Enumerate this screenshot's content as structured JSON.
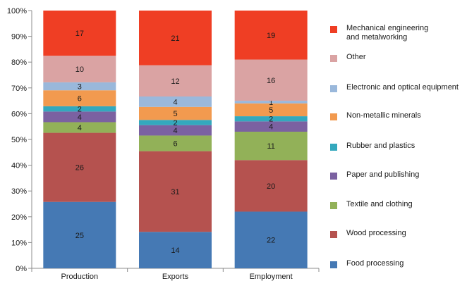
{
  "chart_data": {
    "type": "bar",
    "stacked": true,
    "categories": [
      "Production",
      "Exports",
      "Employment"
    ],
    "ylim": [
      0,
      100
    ],
    "y_ticks": [
      "0%",
      "10%",
      "20%",
      "30%",
      "40%",
      "50%",
      "60%",
      "70%",
      "80%",
      "90%",
      "100%"
    ],
    "grid": false,
    "legend_placement": "right",
    "series": [
      {
        "name": "Food processing",
        "color": "#4579b4",
        "values": [
          25,
          14,
          22
        ]
      },
      {
        "name": "Wood processing",
        "color": "#b5524f",
        "values": [
          26,
          31,
          20
        ]
      },
      {
        "name": "Textile and clothing",
        "color": "#92b158",
        "values": [
          4,
          6,
          11
        ]
      },
      {
        "name": "Paper and publishing",
        "color": "#7b61a1",
        "values": [
          4,
          4,
          4
        ]
      },
      {
        "name": "Rubber and plastics",
        "color": "#34a8bd",
        "values": [
          2,
          2,
          2
        ]
      },
      {
        "name": "Non-metallic minerals",
        "color": "#f29a4f",
        "values": [
          6,
          5,
          5
        ]
      },
      {
        "name": "Electronic and optical equipment",
        "color": "#9ab8db",
        "values": [
          3,
          4,
          1
        ]
      },
      {
        "name": "Other",
        "color": "#daa3a3",
        "values": [
          10,
          12,
          16
        ]
      },
      {
        "name": "Mechanical engineering and metalworking",
        "color": "#ef3e24",
        "values": [
          17,
          21,
          19
        ]
      }
    ]
  },
  "legend": {
    "items": [
      {
        "label": "Mechanical engineering\nand metalworking",
        "color": "#ef3e24"
      },
      {
        "label": "Other",
        "color": "#daa3a3"
      },
      {
        "label": "Electronic and optical equipment",
        "color": "#9ab8db"
      },
      {
        "label": "Non-metallic minerals",
        "color": "#f29a4f"
      },
      {
        "label": "Rubber and plastics",
        "color": "#34a8bd"
      },
      {
        "label": "Paper and publishing",
        "color": "#7b61a1"
      },
      {
        "label": "Textile and clothing",
        "color": "#92b158"
      },
      {
        "label": "Wood processing",
        "color": "#b5524f"
      },
      {
        "label": "Food processing",
        "color": "#4579b4"
      }
    ]
  }
}
